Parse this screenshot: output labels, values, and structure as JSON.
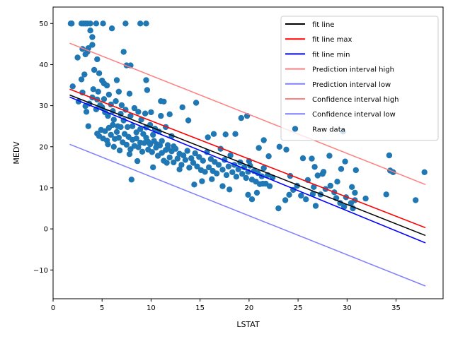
{
  "chart_data": {
    "type": "scatter",
    "xlabel": "LSTAT",
    "ylabel": "MEDV",
    "xlim": [
      0,
      39.8
    ],
    "ylim": [
      -17,
      54
    ],
    "x_ticks": [
      0,
      5,
      10,
      15,
      20,
      25,
      30,
      35
    ],
    "y_ticks": [
      -10,
      0,
      10,
      20,
      30,
      40,
      50
    ],
    "grid": false,
    "legend_position": "top-right",
    "lines": [
      {
        "name": "fit line",
        "color": "#000000",
        "x": [
          1.7,
          38
        ],
        "y": [
          32.6,
          -1.6
        ],
        "width": 1.5
      },
      {
        "name": "fit line max",
        "color": "#ff0000",
        "x": [
          1.7,
          38
        ],
        "y": [
          34.0,
          0.3
        ],
        "width": 1.5
      },
      {
        "name": "fit line min",
        "color": "#0000ff",
        "x": [
          1.7,
          38
        ],
        "y": [
          32.1,
          -3.4
        ],
        "width": 1.5
      },
      {
        "name": "Prediction interval high",
        "color": "#ff7f7f",
        "x": [
          1.7,
          38
        ],
        "y": [
          45.2,
          10.8
        ],
        "width": 1.5
      },
      {
        "name": "Prediction interval low",
        "color": "#7f7fff",
        "x": [
          1.7,
          38
        ],
        "y": [
          20.6,
          -13.9
        ],
        "width": 1.5
      },
      {
        "name": "Confidence interval high",
        "color": "#ff7f7f",
        "x": [
          1.7,
          38
        ],
        "y": [
          34.0,
          0.3
        ],
        "width": 1.5
      },
      {
        "name": "Confidence interval low",
        "color": "#7f7fff",
        "x": [
          1.7,
          38
        ],
        "y": [
          32.1,
          -3.4
        ],
        "width": 1.5
      }
    ],
    "scatter": {
      "name": "Raw data",
      "color": "#1f77b4",
      "points": [
        [
          1.8,
          50
        ],
        [
          1.9,
          50
        ],
        [
          2.9,
          50
        ],
        [
          3.1,
          50
        ],
        [
          3.3,
          50
        ],
        [
          3.5,
          50
        ],
        [
          3.8,
          50
        ],
        [
          4.4,
          50
        ],
        [
          5.1,
          50
        ],
        [
          7.4,
          50
        ],
        [
          8.9,
          50
        ],
        [
          9.5,
          50
        ],
        [
          2.0,
          34.7
        ],
        [
          2.5,
          41.7
        ],
        [
          2.9,
          36.4
        ],
        [
          3.0,
          43.8
        ],
        [
          3.2,
          37.6
        ],
        [
          3.3,
          42.5
        ],
        [
          3.5,
          43.1
        ],
        [
          3.6,
          44.0
        ],
        [
          3.8,
          48.3
        ],
        [
          4.0,
          46.7
        ],
        [
          4.0,
          44.8
        ],
        [
          4.2,
          38.7
        ],
        [
          4.5,
          41.3
        ],
        [
          4.7,
          37.9
        ],
        [
          5.0,
          36.1
        ],
        [
          5.2,
          35.4
        ],
        [
          5.5,
          34.9
        ],
        [
          6.0,
          48.8
        ],
        [
          6.5,
          36.2
        ],
        [
          7.2,
          43.1
        ],
        [
          7.5,
          39.8
        ],
        [
          7.9,
          39.8
        ],
        [
          9.5,
          36.2
        ],
        [
          9.6,
          33.8
        ],
        [
          2.6,
          31.0
        ],
        [
          3.0,
          33.2
        ],
        [
          3.3,
          29.9
        ],
        [
          3.4,
          28.5
        ],
        [
          3.6,
          25.0
        ],
        [
          3.7,
          30.5
        ],
        [
          4.0,
          32.0
        ],
        [
          4.1,
          34.0
        ],
        [
          4.4,
          29.1
        ],
        [
          4.5,
          31.5
        ],
        [
          4.6,
          33.4
        ],
        [
          4.8,
          30.1
        ],
        [
          5.0,
          29.6
        ],
        [
          5.2,
          31.6
        ],
        [
          5.3,
          28.4
        ],
        [
          5.6,
          27.5
        ],
        [
          5.7,
          32.7
        ],
        [
          5.9,
          30.3
        ],
        [
          6.1,
          28.7
        ],
        [
          6.2,
          26.6
        ],
        [
          6.4,
          31.1
        ],
        [
          6.6,
          25.0
        ],
        [
          6.7,
          33.4
        ],
        [
          6.9,
          28.0
        ],
        [
          7.0,
          30.1
        ],
        [
          7.2,
          26.4
        ],
        [
          7.4,
          29.0
        ],
        [
          7.6,
          24.8
        ],
        [
          7.8,
          32.9
        ],
        [
          7.9,
          27.5
        ],
        [
          8.1,
          25.0
        ],
        [
          8.3,
          29.4
        ],
        [
          8.5,
          22.0
        ],
        [
          8.7,
          28.5
        ],
        [
          8.9,
          24.3
        ],
        [
          9.0,
          26.6
        ],
        [
          9.2,
          23.1
        ],
        [
          9.4,
          28.1
        ],
        [
          9.5,
          24.7
        ],
        [
          9.7,
          21.2
        ],
        [
          9.9,
          25.3
        ],
        [
          10.0,
          28.4
        ],
        [
          10.2,
          22.9
        ],
        [
          10.4,
          24.4
        ],
        [
          10.6,
          20.6
        ],
        [
          10.8,
          23.7
        ],
        [
          11.0,
          27.5
        ],
        [
          11.1,
          21.4
        ],
        [
          11.3,
          31.0
        ],
        [
          11.5,
          24.8
        ],
        [
          11.7,
          19.6
        ],
        [
          11.9,
          27.9
        ],
        [
          12.1,
          22.6
        ],
        [
          12.3,
          20.1
        ],
        [
          4.5,
          23.2
        ],
        [
          4.7,
          22.6
        ],
        [
          4.9,
          24.1
        ],
        [
          5.1,
          22.0
        ],
        [
          5.3,
          23.8
        ],
        [
          5.5,
          21.5
        ],
        [
          5.7,
          24.6
        ],
        [
          5.9,
          22.9
        ],
        [
          6.1,
          25.3
        ],
        [
          6.3,
          21.9
        ],
        [
          6.5,
          23.6
        ],
        [
          6.7,
          22.2
        ],
        [
          6.9,
          24.8
        ],
        [
          7.1,
          21.1
        ],
        [
          7.3,
          23.1
        ],
        [
          7.5,
          20.5
        ],
        [
          7.7,
          22.4
        ],
        [
          7.9,
          19.4
        ],
        [
          8.1,
          21.7
        ],
        [
          8.3,
          20.2
        ],
        [
          8.5,
          23.5
        ],
        [
          8.7,
          19.9
        ],
        [
          8.9,
          21.0
        ],
        [
          9.1,
          18.8
        ],
        [
          9.3,
          20.9
        ],
        [
          9.5,
          22.2
        ],
        [
          9.7,
          19.3
        ],
        [
          9.9,
          20.6
        ],
        [
          10.1,
          18.7
        ],
        [
          10.3,
          21.4
        ],
        [
          10.5,
          19.8
        ],
        [
          10.7,
          17.8
        ],
        [
          10.9,
          20.3
        ],
        [
          11.1,
          18.5
        ],
        [
          11.3,
          16.6
        ],
        [
          11.5,
          19.2
        ],
        [
          11.7,
          20.4
        ],
        [
          11.9,
          17.4
        ],
        [
          12.1,
          18.9
        ],
        [
          12.3,
          16.2
        ],
        [
          12.5,
          19.5
        ],
        [
          12.7,
          17.1
        ],
        [
          12.9,
          18.3
        ],
        [
          13.1,
          15.6
        ],
        [
          13.3,
          17.9
        ],
        [
          13.5,
          16.8
        ],
        [
          13.7,
          19.0
        ],
        [
          13.9,
          14.9
        ],
        [
          14.1,
          17.2
        ],
        [
          14.3,
          16.1
        ],
        [
          14.5,
          18.4
        ],
        [
          14.7,
          15.2
        ],
        [
          14.9,
          17.5
        ],
        [
          15.1,
          14.3
        ],
        [
          15.3,
          16.6
        ],
        [
          15.5,
          13.9
        ],
        [
          15.7,
          18.7
        ],
        [
          15.9,
          15.0
        ],
        [
          16.1,
          17.0
        ],
        [
          16.3,
          14.1
        ],
        [
          16.5,
          16.3
        ],
        [
          16.7,
          13.5
        ],
        [
          16.9,
          15.6
        ],
        [
          17.1,
          19.5
        ],
        [
          17.3,
          14.4
        ],
        [
          17.5,
          16.8
        ],
        [
          17.7,
          13.1
        ],
        [
          17.9,
          15.2
        ],
        [
          18.1,
          17.9
        ],
        [
          18.3,
          13.8
        ],
        [
          18.5,
          15.6
        ],
        [
          18.7,
          12.7
        ],
        [
          18.9,
          14.5
        ],
        [
          19.1,
          16.2
        ],
        [
          19.3,
          13.4
        ],
        [
          19.5,
          15.0
        ],
        [
          19.7,
          12.4
        ],
        [
          19.9,
          13.9
        ],
        [
          20.1,
          15.4
        ],
        [
          20.3,
          12.0
        ],
        [
          20.5,
          14.1
        ],
        [
          20.7,
          11.5
        ],
        [
          20.9,
          13.6
        ],
        [
          21.1,
          10.9
        ],
        [
          21.3,
          12.8
        ],
        [
          21.5,
          14.8
        ],
        [
          21.7,
          11.0
        ],
        [
          21.9,
          13.1
        ],
        [
          22.1,
          10.4
        ],
        [
          22.4,
          12.5
        ],
        [
          5.6,
          20.6
        ],
        [
          6.2,
          20.0
        ],
        [
          6.8,
          19.1
        ],
        [
          7.8,
          18.2
        ],
        [
          8.0,
          12.0
        ],
        [
          8.6,
          16.5
        ],
        [
          10.2,
          15.0
        ],
        [
          11.6,
          16.1
        ],
        [
          12.9,
          14.5
        ],
        [
          14.4,
          10.8
        ],
        [
          15.2,
          11.6
        ],
        [
          16.2,
          12.1
        ],
        [
          17.3,
          10.4
        ],
        [
          18.0,
          9.6
        ],
        [
          19.9,
          8.3
        ],
        [
          20.3,
          7.2
        ],
        [
          20.8,
          8.8
        ],
        [
          21.4,
          11.0
        ],
        [
          23.0,
          5.0
        ],
        [
          23.7,
          7.0
        ],
        [
          24.1,
          8.3
        ],
        [
          24.5,
          9.5
        ],
        [
          25.8,
          7.2
        ],
        [
          26.5,
          8.5
        ],
        [
          26.8,
          5.6
        ],
        [
          27.3,
          8.4
        ],
        [
          28.3,
          10.5
        ],
        [
          28.9,
          7.5
        ],
        [
          29.3,
          6.3
        ],
        [
          29.7,
          5.4
        ],
        [
          30.6,
          5.0
        ],
        [
          30.8,
          7.0
        ],
        [
          34.0,
          8.4
        ],
        [
          37.0,
          7.0
        ],
        [
          11.0,
          31.1
        ],
        [
          13.2,
          29.6
        ],
        [
          13.8,
          26.4
        ],
        [
          14.6,
          30.7
        ],
        [
          15.8,
          22.3
        ],
        [
          16.4,
          23.1
        ],
        [
          17.6,
          23.0
        ],
        [
          18.6,
          23.1
        ],
        [
          19.2,
          27.0
        ],
        [
          19.8,
          27.5
        ],
        [
          20.0,
          16.5
        ],
        [
          21.0,
          19.7
        ],
        [
          21.5,
          21.6
        ],
        [
          22.0,
          17.7
        ],
        [
          23.1,
          20.0
        ],
        [
          23.8,
          19.3
        ],
        [
          24.2,
          12.9
        ],
        [
          25.5,
          17.2
        ],
        [
          26.4,
          17.1
        ],
        [
          26.7,
          15.1
        ],
        [
          27.0,
          13.0
        ],
        [
          27.5,
          13.4
        ],
        [
          27.6,
          13.9
        ],
        [
          28.2,
          17.8
        ],
        [
          29.0,
          11.5
        ],
        [
          29.4,
          14.6
        ],
        [
          29.6,
          23.7
        ],
        [
          29.8,
          16.4
        ],
        [
          30.5,
          10.2
        ],
        [
          30.8,
          8.8
        ],
        [
          30.9,
          14.3
        ],
        [
          31.9,
          7.4
        ],
        [
          34.3,
          17.9
        ],
        [
          34.4,
          14.2
        ],
        [
          34.7,
          13.8
        ],
        [
          37.9,
          13.8
        ],
        [
          24.9,
          10.5
        ],
        [
          25.3,
          8.1
        ],
        [
          26.0,
          11.9
        ],
        [
          26.6,
          10.2
        ],
        [
          27.8,
          9.7
        ],
        [
          28.7,
          8.9
        ],
        [
          29.9,
          7.7
        ],
        [
          30.4,
          6.3
        ]
      ]
    }
  }
}
